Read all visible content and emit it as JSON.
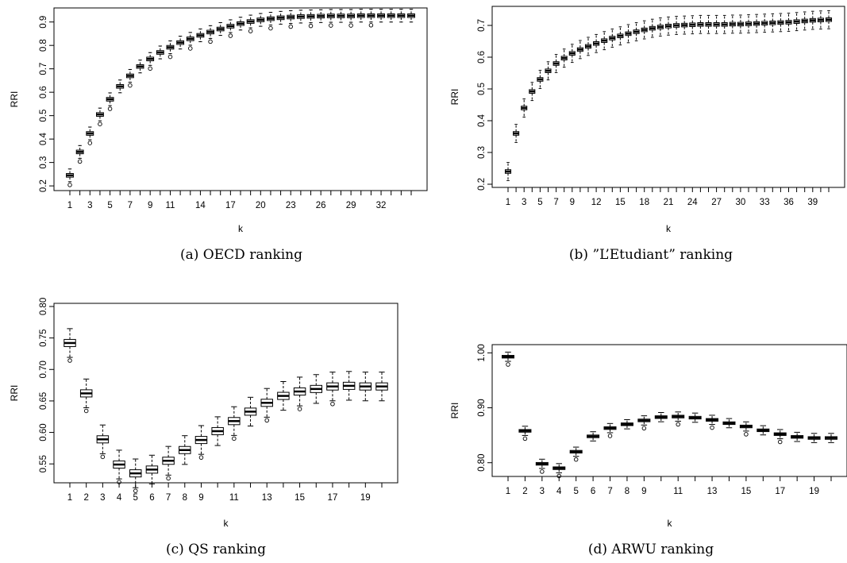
{
  "chart_data": [
    {
      "type": "boxplot",
      "caption": "(a)  OECD ranking",
      "xlabel": "k",
      "ylabel": "RRI",
      "ylim": [
        0.18,
        0.96
      ],
      "yticks": [
        0.2,
        0.3,
        0.4,
        0.5,
        0.6,
        0.7,
        0.8,
        0.9
      ],
      "ytick_labels": [
        "0.2",
        "0.3",
        "0.4",
        "0.5",
        "0.6",
        "0.7",
        "0.8",
        "0.9"
      ],
      "n_boxes": 35,
      "xtick_labels": [
        {
          "k": 1,
          "label": "1"
        },
        {
          "k": 3,
          "label": "3"
        },
        {
          "k": 5,
          "label": "5"
        },
        {
          "k": 7,
          "label": "7"
        },
        {
          "k": 9,
          "label": "9"
        },
        {
          "k": 11,
          "label": "11"
        },
        {
          "k": 14,
          "label": "14"
        },
        {
          "k": 17,
          "label": "17"
        },
        {
          "k": 20,
          "label": "20"
        },
        {
          "k": 23,
          "label": "23"
        },
        {
          "k": 26,
          "label": "26"
        },
        {
          "k": 29,
          "label": "29"
        },
        {
          "k": 32,
          "label": "32"
        }
      ],
      "medians": [
        0.245,
        0.345,
        0.424,
        0.505,
        0.57,
        0.625,
        0.67,
        0.71,
        0.742,
        0.77,
        0.792,
        0.812,
        0.828,
        0.843,
        0.857,
        0.87,
        0.882,
        0.893,
        0.902,
        0.909,
        0.914,
        0.918,
        0.921,
        0.923,
        0.924,
        0.925,
        0.926,
        0.926,
        0.926,
        0.927,
        0.927,
        0.927,
        0.927,
        0.927,
        0.927
      ]
    },
    {
      "type": "boxplot",
      "caption": "(b)  ”L’Etudiant” ranking",
      "xlabel": "k",
      "ylabel": "RRI",
      "ylim": [
        0.19,
        0.76
      ],
      "yticks": [
        0.2,
        0.3,
        0.4,
        0.5,
        0.6,
        0.7
      ],
      "ytick_labels": [
        "0.2",
        "0.3",
        "0.4",
        "0.5",
        "0.6",
        "0.7"
      ],
      "n_boxes": 41,
      "xtick_labels": [
        {
          "k": 1,
          "label": "1"
        },
        {
          "k": 3,
          "label": "3"
        },
        {
          "k": 5,
          "label": "5"
        },
        {
          "k": 7,
          "label": "7"
        },
        {
          "k": 9,
          "label": "9"
        },
        {
          "k": 12,
          "label": "12"
        },
        {
          "k": 15,
          "label": "15"
        },
        {
          "k": 18,
          "label": "18"
        },
        {
          "k": 21,
          "label": "21"
        },
        {
          "k": 24,
          "label": "24"
        },
        {
          "k": 27,
          "label": "27"
        },
        {
          "k": 30,
          "label": "30"
        },
        {
          "k": 33,
          "label": "33"
        },
        {
          "k": 36,
          "label": "36"
        },
        {
          "k": 39,
          "label": "39"
        }
      ],
      "medians": [
        0.24,
        0.36,
        0.44,
        0.492,
        0.53,
        0.557,
        0.58,
        0.597,
        0.612,
        0.624,
        0.634,
        0.643,
        0.652,
        0.66,
        0.667,
        0.674,
        0.68,
        0.686,
        0.691,
        0.695,
        0.698,
        0.7,
        0.701,
        0.702,
        0.703,
        0.703,
        0.703,
        0.703,
        0.704,
        0.704,
        0.705,
        0.706,
        0.707,
        0.708,
        0.709,
        0.71,
        0.712,
        0.714,
        0.716,
        0.717,
        0.718
      ]
    },
    {
      "type": "boxplot",
      "caption": "(c)  QS ranking",
      "xlabel": "k",
      "ylabel": "RRI",
      "ylim": [
        0.52,
        0.805
      ],
      "yticks": [
        0.55,
        0.6,
        0.65,
        0.7,
        0.75,
        0.8
      ],
      "ytick_labels": [
        "0.55",
        "0.60",
        "0.65",
        "0.70",
        "0.75",
        "0.80"
      ],
      "n_boxes": 20,
      "xtick_labels": [
        {
          "k": 1,
          "label": "1"
        },
        {
          "k": 2,
          "label": "2"
        },
        {
          "k": 3,
          "label": "3"
        },
        {
          "k": 4,
          "label": "4"
        },
        {
          "k": 5,
          "label": "5"
        },
        {
          "k": 6,
          "label": "6"
        },
        {
          "k": 7,
          "label": "7"
        },
        {
          "k": 8,
          "label": "8"
        },
        {
          "k": 9,
          "label": "9"
        },
        {
          "k": 11,
          "label": "11"
        },
        {
          "k": 13,
          "label": "13"
        },
        {
          "k": 15,
          "label": "15"
        },
        {
          "k": 17,
          "label": "17"
        },
        {
          "k": 19,
          "label": "19"
        }
      ],
      "medians": [
        0.742,
        0.662,
        0.589,
        0.549,
        0.535,
        0.541,
        0.555,
        0.572,
        0.588,
        0.602,
        0.618,
        0.633,
        0.647,
        0.658,
        0.665,
        0.669,
        0.673,
        0.674,
        0.673,
        0.673
      ]
    },
    {
      "type": "boxplot",
      "caption": "(d)  ARWU ranking",
      "xlabel": "k",
      "ylabel": "RRI",
      "ylim": [
        0.775,
        1.015
      ],
      "yticks": [
        0.8,
        0.9,
        1.0
      ],
      "ytick_labels": [
        "0.80",
        "0.90",
        "1.00"
      ],
      "n_boxes": 20,
      "xtick_labels": [
        {
          "k": 1,
          "label": "1"
        },
        {
          "k": 2,
          "label": "2"
        },
        {
          "k": 3,
          "label": "3"
        },
        {
          "k": 4,
          "label": "4"
        },
        {
          "k": 5,
          "label": "5"
        },
        {
          "k": 6,
          "label": "6"
        },
        {
          "k": 7,
          "label": "7"
        },
        {
          "k": 8,
          "label": "8"
        },
        {
          "k": 9,
          "label": "9"
        },
        {
          "k": 11,
          "label": "11"
        },
        {
          "k": 13,
          "label": "13"
        },
        {
          "k": 15,
          "label": "15"
        },
        {
          "k": 17,
          "label": "17"
        },
        {
          "k": 19,
          "label": "19"
        }
      ],
      "medians": [
        0.993,
        0.858,
        0.798,
        0.79,
        0.82,
        0.848,
        0.863,
        0.87,
        0.877,
        0.883,
        0.884,
        0.882,
        0.878,
        0.872,
        0.866,
        0.859,
        0.852,
        0.847,
        0.845,
        0.845
      ]
    }
  ]
}
